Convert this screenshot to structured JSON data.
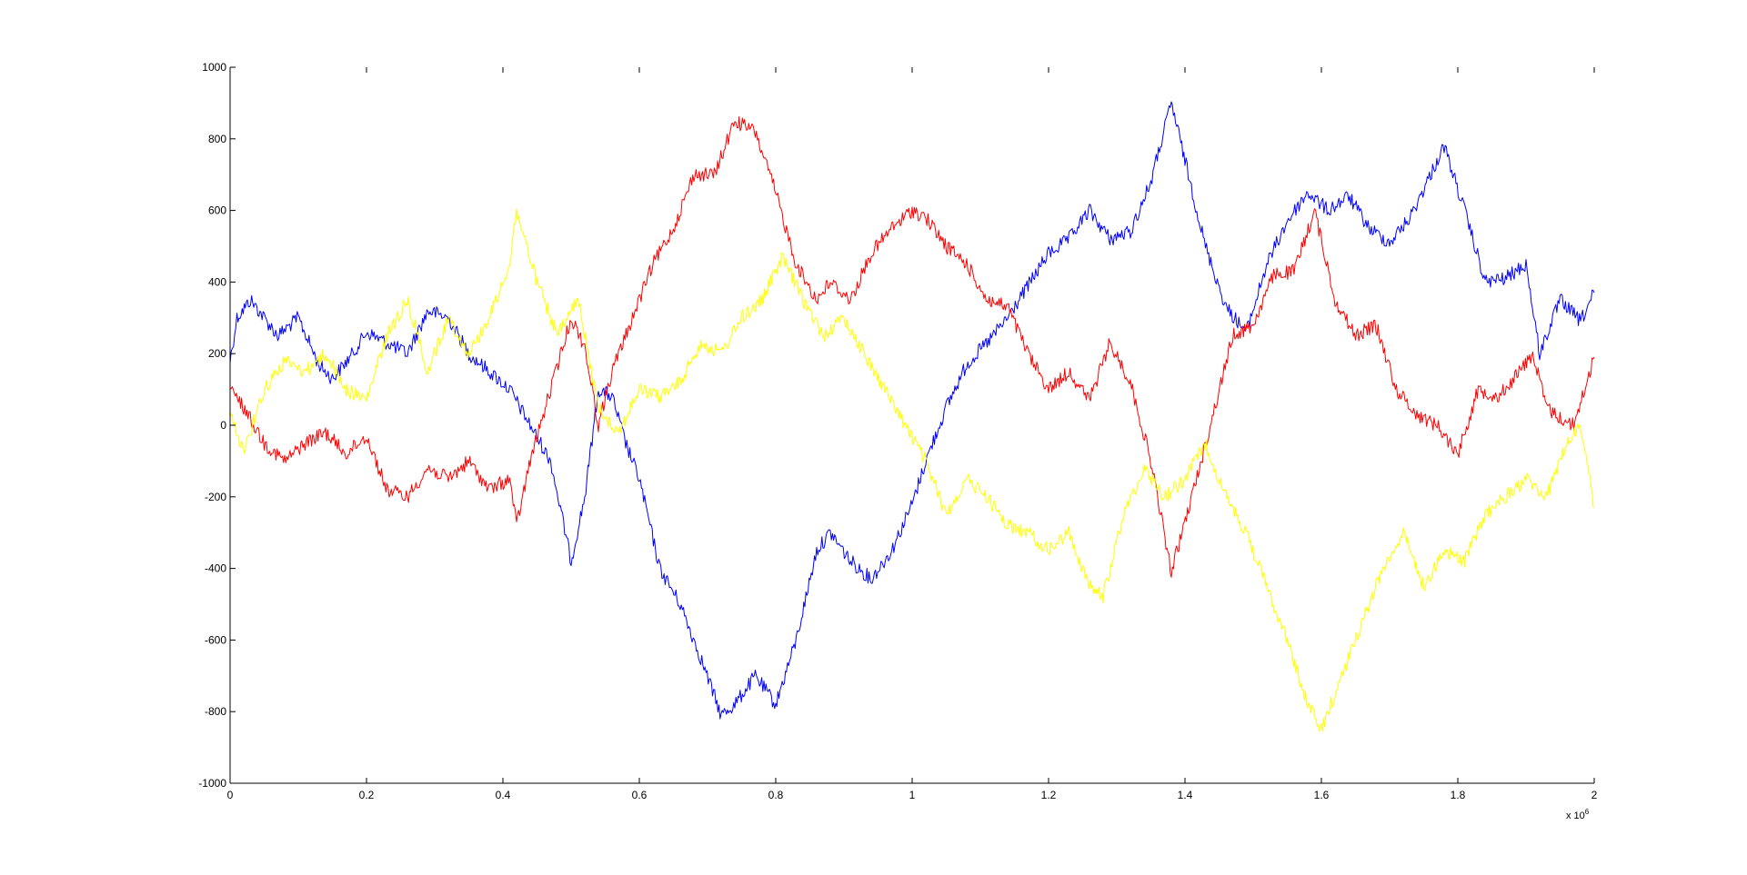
{
  "chart_data": {
    "type": "line",
    "title": "",
    "xlabel": "",
    "ylabel": "",
    "xlim": [
      0,
      2000000
    ],
    "ylim": [
      -1000,
      1000
    ],
    "grid": false,
    "legend": "none",
    "x_exponent_label": {
      "base": "x 10",
      "exponent": "6"
    },
    "x_ticks": [
      {
        "value": 0,
        "label": "0"
      },
      {
        "value": 200000,
        "label": "0.2"
      },
      {
        "value": 400000,
        "label": "0.4"
      },
      {
        "value": 600000,
        "label": "0.6"
      },
      {
        "value": 800000,
        "label": "0.8"
      },
      {
        "value": 1000000,
        "label": "1"
      },
      {
        "value": 1200000,
        "label": "1.2"
      },
      {
        "value": 1400000,
        "label": "1.4"
      },
      {
        "value": 1600000,
        "label": "1.6"
      },
      {
        "value": 1800000,
        "label": "1.8"
      },
      {
        "value": 2000000,
        "label": "2"
      }
    ],
    "y_ticks": [
      {
        "value": 1000,
        "label": "1000"
      },
      {
        "value": 800,
        "label": "800"
      },
      {
        "value": 600,
        "label": "600"
      },
      {
        "value": 400,
        "label": "400"
      },
      {
        "value": 200,
        "label": "200"
      },
      {
        "value": 0,
        "label": "0"
      },
      {
        "value": -200,
        "label": "-200"
      },
      {
        "value": -400,
        "label": "-400"
      },
      {
        "value": -600,
        "label": "-600"
      },
      {
        "value": -800,
        "label": "-800"
      },
      {
        "value": -1000,
        "label": "-1000"
      }
    ],
    "series": [
      {
        "color": "#0000ff",
        "x": [
          0,
          10000,
          30000,
          50000,
          70000,
          100000,
          130000,
          150000,
          180000,
          200000,
          230000,
          260000,
          290000,
          320000,
          350000,
          380000,
          410000,
          440000,
          470000,
          500000,
          520000,
          540000,
          560000,
          580000,
          600000,
          630000,
          660000,
          690000,
          720000,
          740000,
          770000,
          800000,
          830000,
          860000,
          880000,
          910000,
          940000,
          970000,
          1000000,
          1020000,
          1050000,
          1080000,
          1110000,
          1140000,
          1170000,
          1200000,
          1230000,
          1260000,
          1290000,
          1320000,
          1350000,
          1380000,
          1400000,
          1430000,
          1460000,
          1490000,
          1520000,
          1550000,
          1580000,
          1610000,
          1640000,
          1670000,
          1700000,
          1730000,
          1760000,
          1780000,
          1810000,
          1840000,
          1870000,
          1900000,
          1920000,
          1950000,
          1980000,
          2000000
        ],
        "y": [
          180,
          300,
          350,
          300,
          250,
          300,
          170,
          130,
          200,
          260,
          230,
          200,
          320,
          300,
          200,
          150,
          100,
          0,
          -100,
          -380,
          -200,
          100,
          80,
          -50,
          -150,
          -400,
          -500,
          -650,
          -810,
          -780,
          -700,
          -780,
          -600,
          -350,
          -300,
          -380,
          -430,
          -350,
          -220,
          -100,
          50,
          170,
          230,
          300,
          390,
          480,
          520,
          600,
          520,
          540,
          680,
          900,
          740,
          500,
          330,
          260,
          450,
          570,
          650,
          600,
          640,
          550,
          510,
          580,
          700,
          780,
          600,
          400,
          410,
          450,
          200,
          350,
          290,
          370
        ]
      },
      {
        "color": "#ff0000",
        "x": [
          0,
          20000,
          50000,
          80000,
          110000,
          140000,
          170000,
          200000,
          230000,
          260000,
          290000,
          320000,
          350000,
          380000,
          410000,
          420000,
          440000,
          470000,
          500000,
          520000,
          540000,
          560000,
          590000,
          620000,
          650000,
          680000,
          710000,
          740000,
          770000,
          800000,
          830000,
          860000,
          880000,
          910000,
          940000,
          970000,
          1000000,
          1020000,
          1050000,
          1080000,
          1110000,
          1140000,
          1170000,
          1200000,
          1230000,
          1260000,
          1290000,
          1320000,
          1350000,
          1380000,
          1410000,
          1440000,
          1470000,
          1500000,
          1530000,
          1560000,
          1590000,
          1620000,
          1650000,
          1680000,
          1710000,
          1740000,
          1770000,
          1800000,
          1830000,
          1860000,
          1890000,
          1910000,
          1930000,
          1950000,
          1970000,
          2000000
        ],
        "y": [
          100,
          50,
          -50,
          -100,
          -50,
          -20,
          -80,
          -30,
          -180,
          -200,
          -120,
          -150,
          -100,
          -180,
          -150,
          -280,
          -100,
          100,
          300,
          220,
          0,
          150,
          300,
          450,
          550,
          700,
          700,
          850,
          820,
          650,
          450,
          350,
          400,
          350,
          480,
          550,
          600,
          580,
          500,
          450,
          350,
          330,
          200,
          100,
          150,
          70,
          230,
          120,
          -100,
          -410,
          -200,
          20,
          250,
          280,
          420,
          430,
          600,
          350,
          250,
          280,
          100,
          30,
          0,
          -80,
          100,
          80,
          150,
          200,
          50,
          20,
          0,
          190
        ]
      },
      {
        "color": "#ffff00",
        "x": [
          0,
          20000,
          50000,
          80000,
          110000,
          140000,
          170000,
          200000,
          230000,
          260000,
          290000,
          320000,
          350000,
          380000,
          410000,
          420000,
          450000,
          480000,
          510000,
          540000,
          570000,
          600000,
          630000,
          660000,
          690000,
          720000,
          750000,
          780000,
          810000,
          840000,
          870000,
          900000,
          930000,
          960000,
          990000,
          1020000,
          1050000,
          1080000,
          1110000,
          1140000,
          1170000,
          1200000,
          1230000,
          1260000,
          1280000,
          1310000,
          1340000,
          1370000,
          1400000,
          1430000,
          1460000,
          1490000,
          1520000,
          1550000,
          1580000,
          1600000,
          1630000,
          1660000,
          1690000,
          1720000,
          1750000,
          1780000,
          1810000,
          1840000,
          1870000,
          1900000,
          1930000,
          1960000,
          1980000,
          2000000
        ],
        "y": [
          30,
          -70,
          100,
          180,
          150,
          200,
          100,
          70,
          250,
          350,
          150,
          300,
          200,
          300,
          450,
          600,
          400,
          250,
          350,
          50,
          -20,
          100,
          80,
          120,
          230,
          200,
          300,
          350,
          470,
          350,
          250,
          300,
          200,
          100,
          0,
          -100,
          -250,
          -150,
          -200,
          -280,
          -300,
          -350,
          -300,
          -450,
          -480,
          -250,
          -120,
          -200,
          -150,
          -50,
          -200,
          -300,
          -450,
          -600,
          -780,
          -850,
          -700,
          -550,
          -400,
          -300,
          -450,
          -350,
          -380,
          -250,
          -200,
          -150,
          -200,
          -50,
          0,
          -230
        ]
      }
    ]
  }
}
